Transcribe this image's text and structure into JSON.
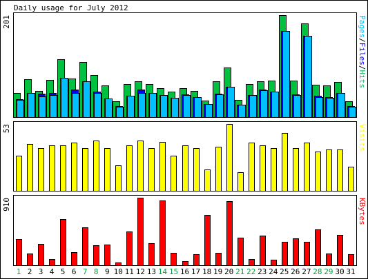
{
  "chart_data": {
    "type": "bar",
    "title": "Daily usage for July 2012",
    "categories": [
      "1",
      "2",
      "3",
      "4",
      "5",
      "6",
      "7",
      "8",
      "9",
      "10",
      "11",
      "12",
      "13",
      "14",
      "15",
      "16",
      "17",
      "18",
      "19",
      "20",
      "21",
      "22",
      "23",
      "24",
      "25",
      "26",
      "27",
      "28",
      "29",
      "30",
      "31"
    ],
    "weekend_days": [
      "1",
      "7",
      "8",
      "14",
      "15",
      "21",
      "22",
      "28",
      "29"
    ],
    "panels": [
      {
        "id": "hits",
        "ymax_label": "201",
        "ymax": 201,
        "legend": [
          {
            "text": "Pages",
            "color": "#00c0ff"
          },
          {
            "text": "/",
            "color": "#000000"
          },
          {
            "text": "Files",
            "color": "#0000ff"
          },
          {
            "text": "/",
            "color": "#000000"
          },
          {
            "text": "Hits",
            "color": "#00c060"
          }
        ],
        "series": [
          {
            "name": "Hits",
            "color": "#00c040",
            "values": [
              48,
              75,
              51,
              74,
              114,
              76,
              108,
              83,
              62,
              31,
              65,
              70,
              65,
              57,
              50,
              57,
              51,
              33,
              70,
              98,
              34,
              65,
              70,
              72,
              201,
              72,
              185,
              64,
              62,
              69,
              31
            ]
          },
          {
            "name": "Files",
            "color": "#0000ff",
            "values": [
              35,
              48,
              46,
              47,
              78,
              55,
              70,
              50,
              37,
              22,
              42,
              54,
              47,
              44,
              38,
              45,
              40,
              26,
              46,
              60,
              25,
              44,
              54,
              50,
              170,
              45,
              160,
              42,
              39,
              48,
              22
            ]
          },
          {
            "name": "Pages",
            "color": "#00c0ff",
            "values": [
              34,
              48,
              41,
              44,
              78,
              48,
              70,
              48,
              37,
              20,
              42,
              48,
              47,
              44,
              38,
              44,
              40,
              26,
              45,
              60,
              25,
              44,
              53,
              50,
              170,
              44,
              160,
              40,
              38,
              48,
              21
            ]
          }
        ]
      },
      {
        "id": "visits",
        "ymax_label": "53",
        "ymax": 53,
        "legend": [
          {
            "text": "Visits",
            "color": "#ffff00"
          }
        ],
        "series": [
          {
            "name": "Visits",
            "color": "#ffff00",
            "values": [
              28,
              37,
              34,
              36,
              36,
              38,
              34,
              40,
              34,
              20,
              36,
              40,
              34,
              39,
              28,
              36,
              34,
              17,
              35,
              53,
              15,
              38,
              36,
              34,
              46,
              34,
              38,
              31,
              33,
              33,
              19
            ]
          }
        ]
      },
      {
        "id": "kbytes",
        "ymax_label": "910",
        "ymax": 910,
        "legend": [
          {
            "text": "KBytes",
            "color": "#ff0000"
          }
        ],
        "series": [
          {
            "name": "KBytes",
            "color": "#ff0000",
            "values": [
              355,
              160,
              290,
              80,
              625,
              180,
              510,
              270,
              280,
              35,
              455,
              910,
              300,
              870,
              165,
              55,
              150,
              675,
              165,
              860,
              370,
              80,
              400,
              70,
              320,
              360,
              320,
              480,
              160,
              410,
              145
            ]
          }
        ]
      }
    ]
  }
}
